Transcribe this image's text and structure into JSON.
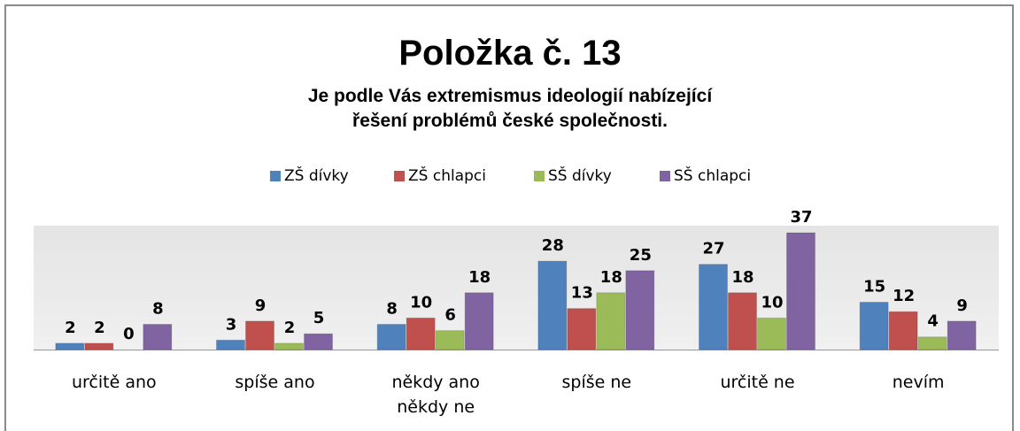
{
  "chart_data": {
    "type": "bar",
    "title": "Položka č. 13",
    "subtitle": "Je podle Vás extremismus ideologií nabízející řešení problémů české společnosti.",
    "categories": [
      "určitě ano",
      "spíše ano",
      "někdy ano někdy ne",
      "spíše ne",
      "určitě ne",
      "nevím"
    ],
    "series": [
      {
        "name": "ZŠ dívky",
        "color": "#4f81bd",
        "values": [
          2,
          3,
          8,
          28,
          27,
          15
        ]
      },
      {
        "name": "ZŠ chlapci",
        "color": "#c0504d",
        "values": [
          2,
          9,
          10,
          13,
          18,
          12
        ]
      },
      {
        "name": "SŠ dívky",
        "color": "#9bbb59",
        "values": [
          0,
          2,
          6,
          18,
          10,
          4
        ]
      },
      {
        "name": "SŠ chlapci",
        "color": "#8064a2",
        "values": [
          8,
          5,
          18,
          25,
          37,
          9
        ]
      }
    ],
    "legend": "top"
  }
}
